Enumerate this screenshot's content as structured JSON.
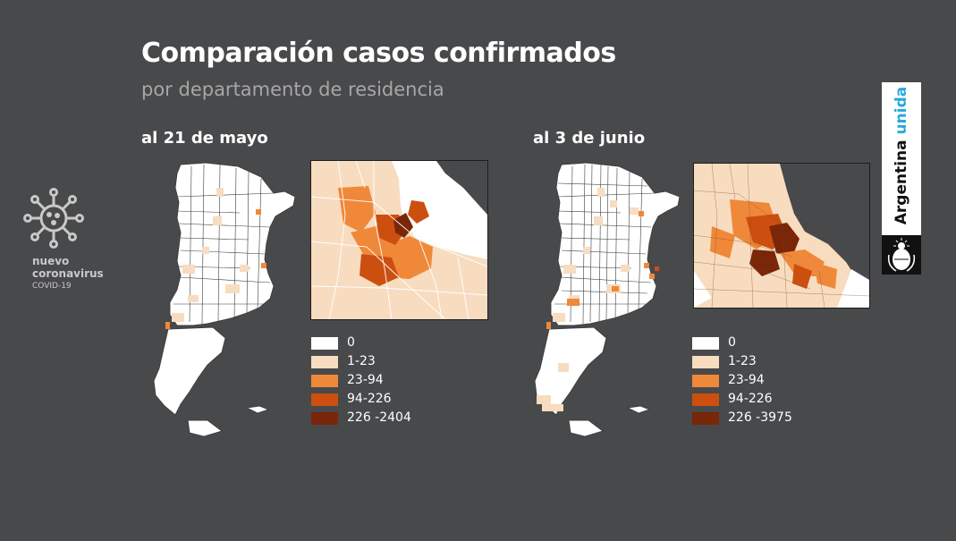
{
  "header": {
    "title": "Comparación casos confirmados",
    "subtitle": "por departamento de residencia"
  },
  "brand": {
    "line1": "nuevo",
    "line2": "coronavirus",
    "line3": "COVID-19",
    "icon": "virus-icon"
  },
  "badge": {
    "word1": "Argentina",
    "word2": "unida",
    "accent": "#2aa8dc",
    "seal_icon": "coat-of-arms-icon"
  },
  "colors": {
    "background": "#48494b",
    "country_fill": "#ffffff",
    "border": "#3d3d3d"
  },
  "panels": [
    {
      "title": "al 21 de mayo",
      "legend": [
        {
          "label": "0",
          "color": "#ffffff"
        },
        {
          "label": "1-23",
          "color": "#f7dcc0"
        },
        {
          "label": "23-94",
          "color": "#f0883a"
        },
        {
          "label": "94-226",
          "color": "#cc4f10"
        },
        {
          "label": "226 -2404",
          "color": "#7a2608"
        }
      ]
    },
    {
      "title": "al 3 de junio",
      "legend": [
        {
          "label": "0",
          "color": "#ffffff"
        },
        {
          "label": "1-23",
          "color": "#f7dcc0"
        },
        {
          "label": "23-94",
          "color": "#f0883a"
        },
        {
          "label": "94-226",
          "color": "#cc4f10"
        },
        {
          "label": "226 -3975",
          "color": "#7a2608"
        }
      ]
    }
  ]
}
